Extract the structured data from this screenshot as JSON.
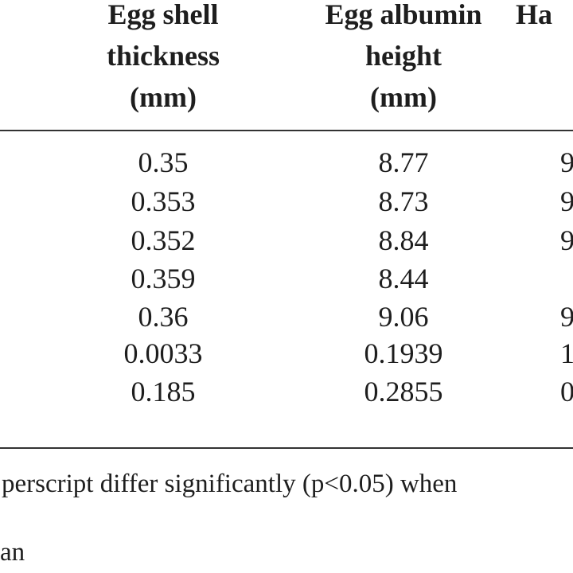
{
  "table": {
    "headers": [
      {
        "lines": [
          "Egg shell",
          "thickness",
          "(mm)"
        ]
      },
      {
        "lines": [
          "Egg albumin",
          "height",
          "(mm)"
        ]
      },
      {
        "lines": [
          "Ha"
        ]
      }
    ],
    "rows": [
      {
        "shell": "0.35",
        "albumin": "8.77",
        "partial": "9"
      },
      {
        "shell": "0.353",
        "albumin": "8.73",
        "partial": "9"
      },
      {
        "shell": "0.352",
        "albumin": "8.84",
        "partial": "9"
      },
      {
        "shell": "0.359",
        "albumin": "8.44",
        "partial": ""
      },
      {
        "shell": "0.36",
        "albumin": "9.06",
        "partial": "9"
      },
      {
        "shell": "0.0033",
        "albumin": "0.1939",
        "partial": "1"
      },
      {
        "shell": "0.185",
        "albumin": "0.2855",
        "partial": "0"
      }
    ]
  },
  "footnotes": {
    "line1": "perscript differ significantly (p<0.05) when",
    "line2": "an"
  }
}
